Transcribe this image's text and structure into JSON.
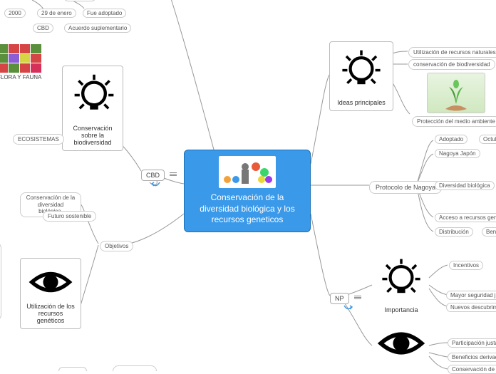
{
  "colors": {
    "bg": "#ffffff",
    "center_bg": "#3a99e9",
    "center_border": "#1a6fb5",
    "node_border": "#bbbbbb",
    "pill_border": "#cccccc",
    "edge": "#999999",
    "text": "#333333"
  },
  "center": {
    "title": "Conservación de la diversidad biológica y los recursos geneticos"
  },
  "ideas_principales": {
    "label": "Ideas principales",
    "children": {
      "utilizacion": "Utilización de recursos naturales",
      "conservacion_bio": "conservación de biodiversidad",
      "proteccion": "Protección del medio ambiente"
    }
  },
  "protocolo": {
    "label": "Protocolo de Nagoya",
    "children": {
      "adoptado": "Adoptado",
      "octubre": "Octubre",
      "nagoya_japon": "Nagoya Japón",
      "diversidad_bio": "Diversidad biológica",
      "acceso": "Acceso a recursos genéticos",
      "distribucion": "Distribución",
      "benef": "Benef"
    }
  },
  "np_hub": {
    "label": "NP"
  },
  "importancia": {
    "label": "Importancia",
    "children": {
      "incentivos": "Incentivos",
      "seguridad": "Mayor seguridad jurídic",
      "descubrimientos": "Nuevos descubrimiento"
    }
  },
  "eye_right": {
    "children": {
      "participacion": "Participación justa",
      "beneficios": "Beneficios derivados",
      "conservacion_div": "Conservación de la dive"
    }
  },
  "cbd_hub": {
    "label": "CBD"
  },
  "conservacion_bio_node": {
    "label": "Conservación sobre la biodiversidad"
  },
  "flora": {
    "label": "FLORA Y FAUNA"
  },
  "ecosistemas": {
    "label": "ECOSISTEMAS"
  },
  "top_pills": {
    "p2000": "2000",
    "p29enero": "29 de enero",
    "adoptado": "Fue adoptado",
    "cbd": "CBD",
    "acuerdo": "Acuerdo suplementario"
  },
  "objetivos": {
    "label": "Objetivos"
  },
  "conservacion_diversidad": {
    "label": "Conservación de la diversidad biológica."
  },
  "futuro": {
    "label": "Futuro sostenible"
  },
  "utilizacion_recursos": {
    "label": "Utilización de los recursos genéticos"
  },
  "flora_colors": [
    "#5a8f3c",
    "#d64545",
    "#d64545",
    "#5a8f3c",
    "#5a8f3c",
    "#8a5fd6",
    "#d6d645",
    "#d64545",
    "#d64545",
    "#5a8f3c",
    "#d64545",
    "#d6305a"
  ]
}
